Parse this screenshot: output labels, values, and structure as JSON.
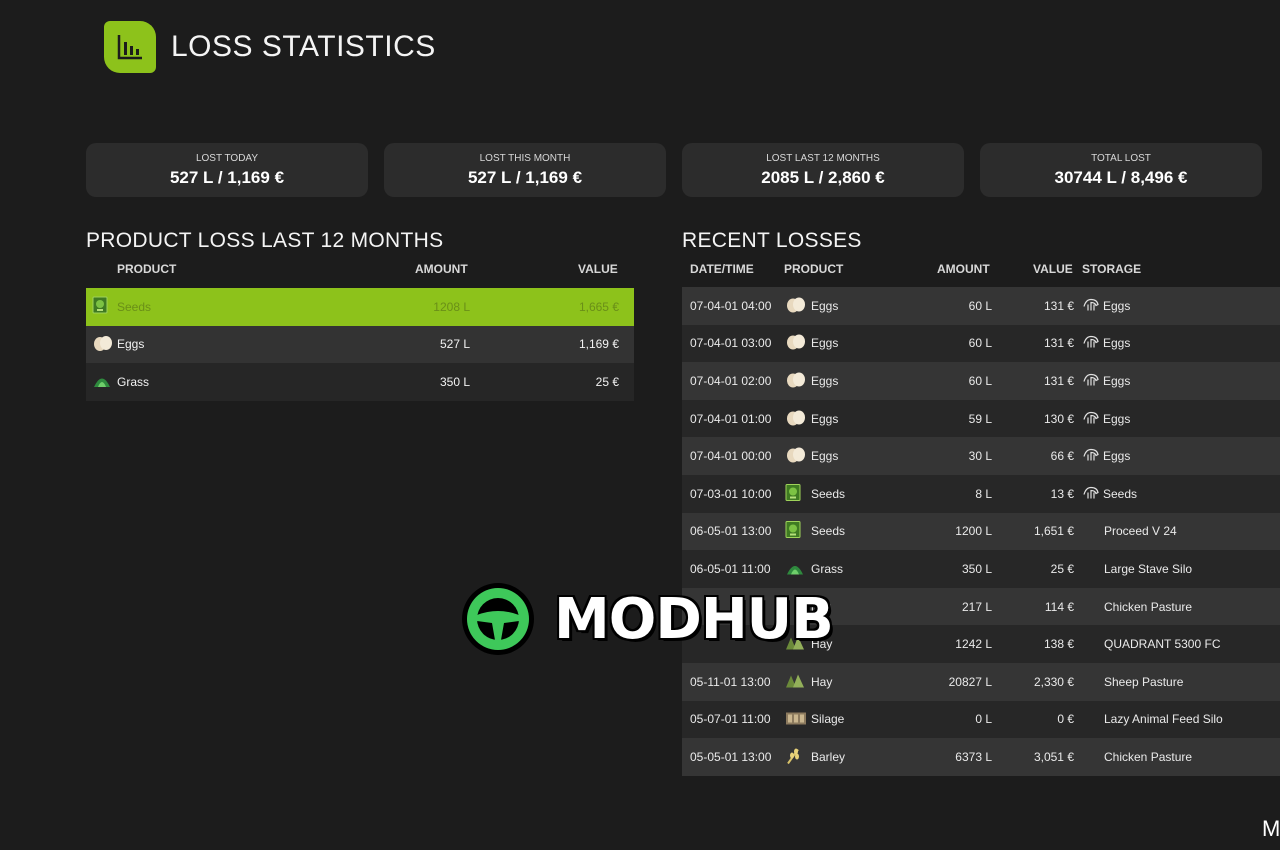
{
  "header": {
    "title": "LOSS STATISTICS",
    "icon": "bar-chart-icon"
  },
  "summary": [
    {
      "label": "LOST TODAY",
      "value": "527 L / 1,169 €"
    },
    {
      "label": "LOST THIS MONTH",
      "value": "527 L / 1,169 €"
    },
    {
      "label": "LOST LAST 12 MONTHS",
      "value": "2085 L / 2,860 €"
    },
    {
      "label": "TOTAL LOST",
      "value": "30744 L / 8,496 €"
    }
  ],
  "product_loss": {
    "title": "PRODUCT LOSS LAST 12 MONTHS",
    "columns": {
      "product": "PRODUCT",
      "amount": "AMOUNT",
      "value": "VALUE"
    },
    "rows": [
      {
        "product": "Seeds",
        "amount": "1208 L",
        "value": "1,665 €",
        "icon": "seeds-icon",
        "selected": true
      },
      {
        "product": "Eggs",
        "amount": "527 L",
        "value": "1,169 €",
        "icon": "eggs-icon"
      },
      {
        "product": "Grass",
        "amount": "350 L",
        "value": "25 €",
        "icon": "grass-icon"
      }
    ]
  },
  "recent_losses": {
    "title": "RECENT LOSSES",
    "columns": {
      "datetime": "DATE/TIME",
      "product": "PRODUCT",
      "amount": "AMOUNT",
      "value": "VALUE",
      "storage": "STORAGE"
    },
    "rows": [
      {
        "datetime": "07-04-01 04:00",
        "product": "Eggs",
        "amount": "60 L",
        "value": "131 €",
        "storage": "Eggs",
        "icon": "eggs-icon",
        "storage_icon": "hand-icon"
      },
      {
        "datetime": "07-04-01 03:00",
        "product": "Eggs",
        "amount": "60 L",
        "value": "131 €",
        "storage": "Eggs",
        "icon": "eggs-icon",
        "storage_icon": "hand-icon"
      },
      {
        "datetime": "07-04-01 02:00",
        "product": "Eggs",
        "amount": "60 L",
        "value": "131 €",
        "storage": "Eggs",
        "icon": "eggs-icon",
        "storage_icon": "hand-icon"
      },
      {
        "datetime": "07-04-01 01:00",
        "product": "Eggs",
        "amount": "59 L",
        "value": "130 €",
        "storage": "Eggs",
        "icon": "eggs-icon",
        "storage_icon": "hand-icon"
      },
      {
        "datetime": "07-04-01 00:00",
        "product": "Eggs",
        "amount": "30 L",
        "value": "66 €",
        "storage": "Eggs",
        "icon": "eggs-icon",
        "storage_icon": "hand-icon"
      },
      {
        "datetime": "07-03-01 10:00",
        "product": "Seeds",
        "amount": "8 L",
        "value": "13 €",
        "storage": "Seeds",
        "icon": "seeds-icon",
        "storage_icon": "hand-icon"
      },
      {
        "datetime": "06-05-01 13:00",
        "product": "Seeds",
        "amount": "1200 L",
        "value": "1,651 €",
        "storage": "Proceed V 24",
        "icon": "seeds-icon",
        "storage_icon": ""
      },
      {
        "datetime": "06-05-01 11:00",
        "product": "Grass",
        "amount": "350 L",
        "value": "25 €",
        "storage": "Large Stave Silo",
        "icon": "grass-icon",
        "storage_icon": ""
      },
      {
        "datetime": "",
        "product": "rley",
        "amount": "217 L",
        "value": "114 €",
        "storage": "Chicken Pasture",
        "icon": "",
        "storage_icon": ""
      },
      {
        "datetime": "",
        "product": "Hay",
        "amount": "1242 L",
        "value": "138 €",
        "storage": "QUADRANT 5300 FC",
        "icon": "hay-icon",
        "storage_icon": ""
      },
      {
        "datetime": "05-11-01 13:00",
        "product": "Hay",
        "amount": "20827 L",
        "value": "2,330 €",
        "storage": "Sheep Pasture",
        "icon": "hay-icon",
        "storage_icon": ""
      },
      {
        "datetime": "05-07-01 11:00",
        "product": "Silage",
        "amount": "0 L",
        "value": "0 €",
        "storage": "Lazy Animal Feed Silo",
        "icon": "silage-icon",
        "storage_icon": ""
      },
      {
        "datetime": "05-05-01 13:00",
        "product": "Barley",
        "amount": "6373 L",
        "value": "3,051 €",
        "storage": "Chicken Pasture",
        "icon": "barley-icon",
        "storage_icon": ""
      }
    ]
  },
  "watermark": {
    "text": "MODHUB",
    "icon": "steering-wheel-icon"
  },
  "corner_text": "M",
  "colors": {
    "accent": "#8dc21b",
    "background": "#1c1c1c",
    "panel": "#2c2c2c"
  }
}
